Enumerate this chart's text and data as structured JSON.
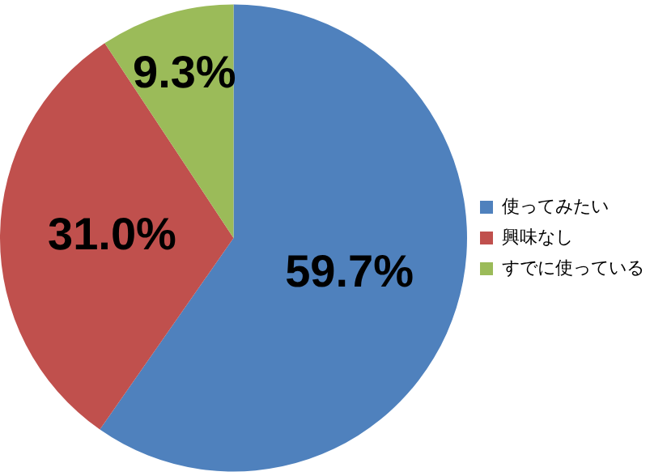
{
  "chart_data": {
    "type": "pie",
    "categories": [
      "使ってみたい",
      "興味なし",
      "すでに使っている"
    ],
    "values": [
      59.7,
      31.0,
      9.3
    ],
    "colors": [
      "#4f81bd",
      "#c0504d",
      "#9bbb59"
    ],
    "value_labels": [
      "59.7%",
      "31.0%",
      "9.3%"
    ],
    "legend": "right"
  }
}
